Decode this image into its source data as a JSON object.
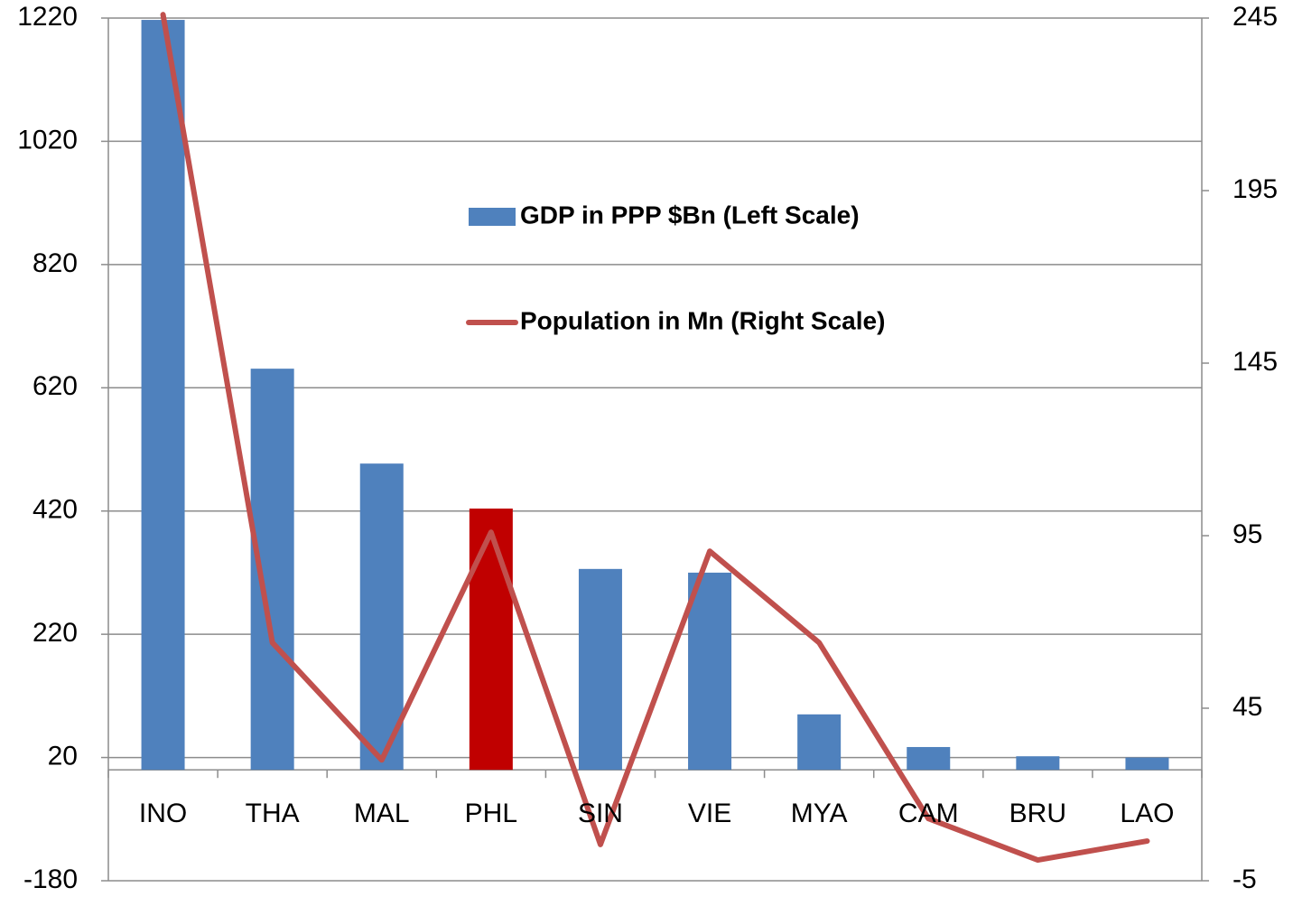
{
  "chart_data": {
    "type": "bar_line",
    "categories": [
      "INO",
      "THA",
      "MAL",
      "PHL",
      "SIN",
      "VIE",
      "MYA",
      "CAM",
      "BRU",
      "LAO"
    ],
    "series": [
      {
        "name": "GDP in PPP $Bn (Left Scale)",
        "type": "bar",
        "color": "#4f81bd",
        "colors": [
          "#4f81bd",
          "#4f81bd",
          "#4f81bd",
          "#c00000",
          "#4f81bd",
          "#4f81bd",
          "#4f81bd",
          "#4f81bd",
          "#4f81bd",
          "#4f81bd"
        ],
        "values": [
          1217,
          651,
          497,
          424,
          326,
          320,
          90,
          37,
          22,
          20
        ]
      },
      {
        "name": "Population in Mn (Right Scale)",
        "type": "line",
        "axis": "y2",
        "color": "#c0504d",
        "values": [
          246,
          64,
          30,
          96,
          5.5,
          90.5,
          64,
          13,
          1,
          6.5
        ]
      }
    ],
    "ylim": [
      -180,
      1220
    ],
    "yticks": [
      -180,
      20,
      220,
      420,
      620,
      820,
      1020,
      1220
    ],
    "y2lim": [
      -5,
      245
    ],
    "y2ticks": [
      -5,
      45,
      95,
      145,
      195,
      245
    ],
    "grid": true
  }
}
